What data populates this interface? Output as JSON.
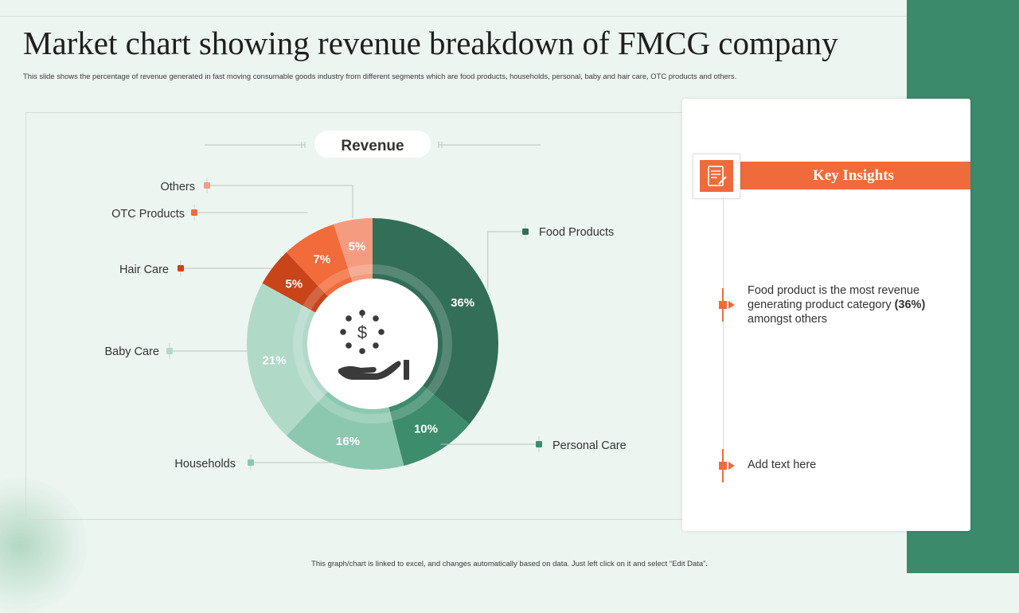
{
  "page": {
    "title": "Market chart showing revenue breakdown of FMCG company",
    "subtitle": "This slide shows the percentage of revenue generated in fast moving consumable goods industry from different segments which are food products, households, personal, baby and hair care, OTC  products and others.",
    "footer": "This graph/chart is linked to excel, and changes automatically based on data.  Just left click on it and select “Edit Data”."
  },
  "chart_data": {
    "type": "pie",
    "title": "Revenue",
    "categories": [
      "Food Products",
      "Personal Care",
      "Households",
      "Baby Care",
      "Hair Care",
      "OTC Products",
      "Others"
    ],
    "values": [
      36,
      10,
      16,
      21,
      5,
      7,
      5
    ],
    "value_labels": [
      "36%",
      "10%",
      "16%",
      "21%",
      "5%",
      "7%",
      "5%"
    ],
    "colors": [
      "#336e58",
      "#3d8c6c",
      "#8cc8b0",
      "#b1d9c8",
      "#c94419",
      "#f26b3a",
      "#f59c80"
    ],
    "center_icon": "money-hand-icon",
    "donut": true
  },
  "insights": {
    "title": "Key Insights",
    "header_icon": "notepad-icon",
    "items": [
      {
        "text_before": "Food product is the most revenue generating product category ",
        "emphasis": "(36%)",
        "text_after": " amongst others"
      },
      {
        "text_before": "Add text here",
        "emphasis": "",
        "text_after": ""
      }
    ]
  },
  "colors": {
    "accent_orange": "#f06b3c",
    "band_green": "#3c8a6c",
    "background": "#edf5f1"
  }
}
